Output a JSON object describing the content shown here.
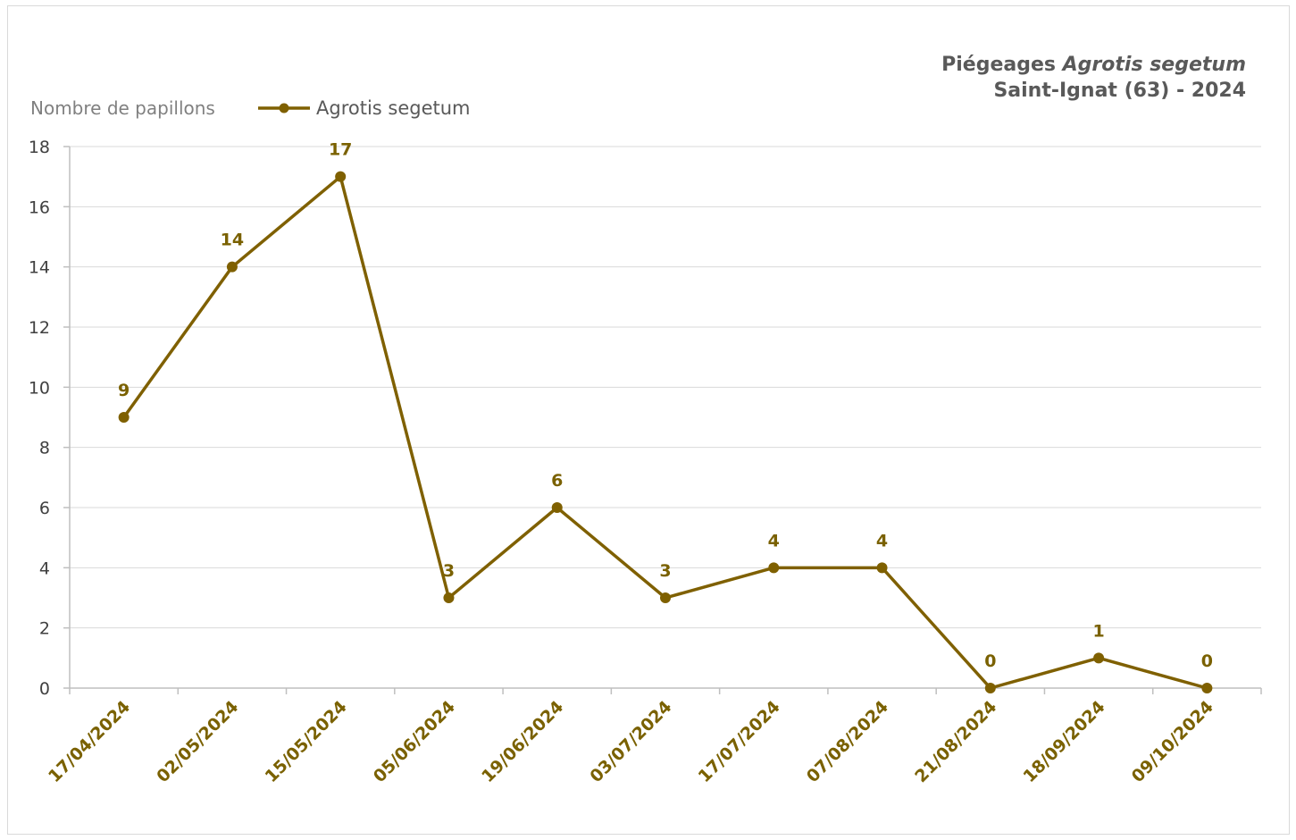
{
  "chart_data": {
    "type": "line",
    "title_line1_prefix": "Piégeages ",
    "title_line1_italic": "Agrotis segetum",
    "title_line2": "Saint-Ignat (63) - 2024",
    "ylabel": "Nombre de papillons",
    "xlabel": "",
    "ylim": [
      0,
      18
    ],
    "yticks": [
      "0",
      "2",
      "4",
      "6",
      "8",
      "10",
      "12",
      "14",
      "16",
      "18"
    ],
    "grid": true,
    "legend_position": "top-left",
    "categories": [
      "17/04/2024",
      "02/05/2024",
      "15/05/2024",
      "05/06/2024",
      "19/06/2024",
      "03/07/2024",
      "17/07/2024",
      "07/08/2024",
      "21/08/2024",
      "18/09/2024",
      "09/10/2024"
    ],
    "series": [
      {
        "name": "Agrotis segetum",
        "color": "#7f6000",
        "values": [
          9,
          14,
          17,
          3,
          6,
          3,
          4,
          4,
          0,
          1,
          0
        ],
        "labels": [
          "9",
          "14",
          "17",
          "3",
          "6",
          "3",
          "4",
          "4",
          "0",
          "1",
          "0"
        ]
      }
    ]
  }
}
